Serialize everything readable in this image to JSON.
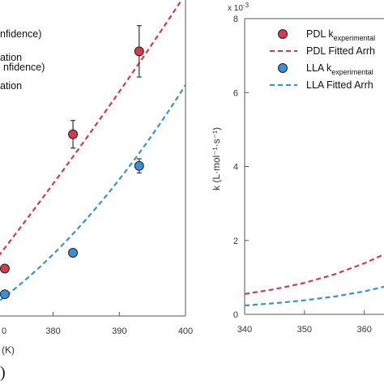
{
  "chart_data": [
    {
      "type": "scatter",
      "x_ticks": [
        "0",
        "380",
        "390",
        "400"
      ],
      "xlabel_partial": "ture (K)",
      "xlim": [
        371,
        400
      ],
      "ylim": [
        0,
        8
      ],
      "legend_fragments": [
        "nfidence)",
        "ation",
        "nfidence)",
        "ation"
      ],
      "series": [
        {
          "color": "#d43a4a",
          "points": [
            {
              "x": 372.7,
              "y": 1.2
            },
            {
              "x": 383.0,
              "y": 4.6
            },
            {
              "x": 393.0,
              "y": 6.7
            }
          ],
          "error": [
            0.0,
            0.35,
            0.65
          ],
          "fit": [
            [
              371,
              1.35
            ],
            [
              380,
              3.3
            ],
            [
              390,
              5.6
            ],
            [
              400,
              8.15
            ]
          ]
        },
        {
          "color": "#3a8fd9",
          "points": [
            {
              "x": 372.7,
              "y": 0.55
            },
            {
              "x": 383.0,
              "y": 1.6
            },
            {
              "x": 393.0,
              "y": 3.8
            }
          ],
          "error": [
            0.0,
            0.0,
            0.18
          ],
          "fit": [
            [
              371,
              0.28
            ],
            [
              380,
              1.35
            ],
            [
              390,
              3.2
            ],
            [
              400,
              5.85
            ]
          ]
        }
      ],
      "bottom_label": ")"
    },
    {
      "type": "line",
      "x_ticks": [
        "340",
        "350",
        "360"
      ],
      "y_ticks": [
        "0",
        "2",
        "4",
        "6",
        "8"
      ],
      "exponent_label": "x 10",
      "exponent_power": "-3",
      "ylabel": "k (L·mol⁻¹·s⁻¹)",
      "xlim": [
        340,
        366
      ],
      "ylim": [
        0,
        8
      ],
      "legend": [
        {
          "name": "PDL k",
          "sub": "experimental",
          "kind": "marker",
          "color": "#d43a4a"
        },
        {
          "name": "PDL Fitted Arrh",
          "kind": "dash",
          "color": "#d43a4a"
        },
        {
          "name": "LLA k",
          "sub": "experimental",
          "kind": "marker",
          "color": "#3a8fd9"
        },
        {
          "name": "LLA Fitted Arrh",
          "kind": "dash",
          "color": "#3a8fd9"
        }
      ],
      "series": [
        {
          "color": "#d43a4a",
          "fit": [
            [
              340,
              0.55
            ],
            [
              345,
              0.68
            ],
            [
              350,
              0.85
            ],
            [
              355,
              1.08
            ],
            [
              360,
              1.38
            ],
            [
              366,
              1.82
            ]
          ]
        },
        {
          "color": "#3a8fd9",
          "fit": [
            [
              340,
              0.24
            ],
            [
              345,
              0.3
            ],
            [
              350,
              0.38
            ],
            [
              355,
              0.48
            ],
            [
              360,
              0.62
            ],
            [
              366,
              0.85
            ]
          ]
        }
      ]
    }
  ]
}
